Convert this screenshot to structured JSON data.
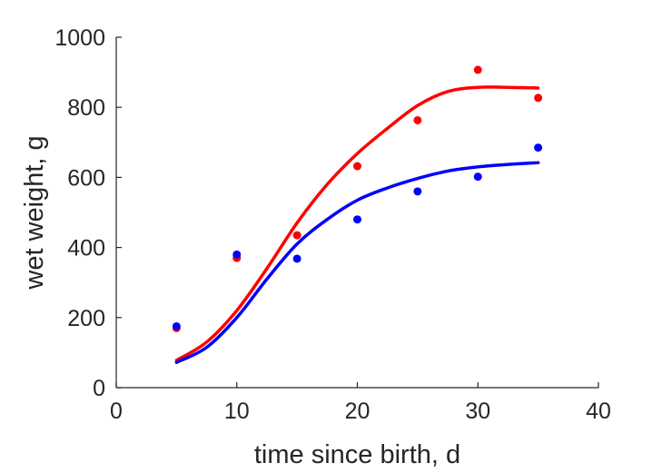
{
  "chart_data": {
    "type": "scatter",
    "title": "",
    "xlabel": "time since birth, d",
    "ylabel": "wet weight, g",
    "xlim": [
      0,
      40
    ],
    "ylim": [
      0,
      1000
    ],
    "xticks": [
      0,
      10,
      20,
      30,
      40
    ],
    "yticks": [
      0,
      200,
      400,
      600,
      800,
      1000
    ],
    "grid": false,
    "legend": "none",
    "series": [
      {
        "color": "#ff0000",
        "points": {
          "x": [
            5,
            10,
            15,
            20,
            25,
            30,
            35
          ],
          "y": [
            170,
            370,
            435,
            632,
            763,
            907,
            827
          ]
        },
        "fit": {
          "x": [
            5,
            7.5,
            10,
            12.5,
            15,
            17.5,
            20,
            22.5,
            25,
            27.5,
            30,
            32.5,
            35
          ],
          "y": [
            78,
            130,
            220,
            340,
            470,
            580,
            668,
            740,
            805,
            845,
            857,
            857,
            855
          ]
        }
      },
      {
        "color": "#0000ff",
        "points": {
          "x": [
            5,
            10,
            15,
            20,
            25,
            30,
            35
          ],
          "y": [
            175,
            380,
            368,
            480,
            560,
            602,
            685
          ]
        },
        "fit": {
          "x": [
            5,
            7.5,
            10,
            12.5,
            15,
            17.5,
            20,
            22.5,
            25,
            27.5,
            30,
            32.5,
            35
          ],
          "y": [
            72,
            115,
            200,
            310,
            410,
            480,
            535,
            570,
            597,
            618,
            630,
            637,
            642
          ]
        }
      }
    ]
  }
}
